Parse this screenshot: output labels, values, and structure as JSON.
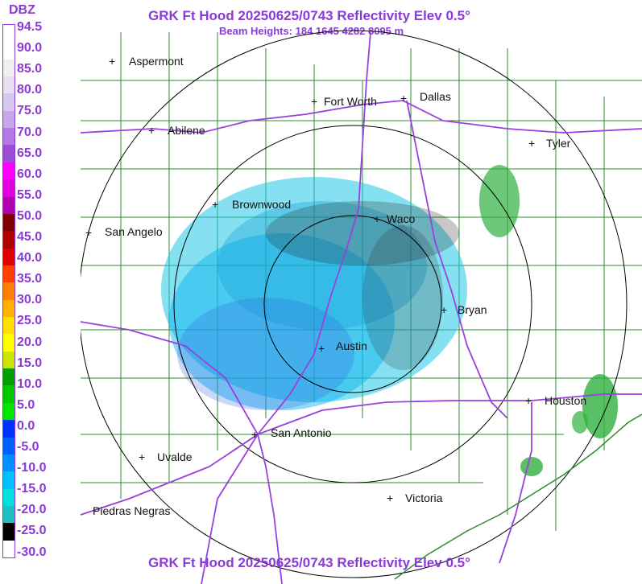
{
  "legend": {
    "title": "DBZ",
    "ticks": [
      "94.5",
      "90.0",
      "85.0",
      "80.0",
      "75.0",
      "70.0",
      "65.0",
      "60.0",
      "55.0",
      "50.0",
      "45.0",
      "40.0",
      "35.0",
      "30.0",
      "25.0",
      "20.0",
      "15.0",
      "10.0",
      "5.0",
      "0.0",
      "-5.0",
      "-10.0",
      "-15.0",
      "-20.0",
      "-25.0",
      "-30.0"
    ],
    "colors": [
      "#ffffff",
      "#ffffff",
      "#f0f0f0",
      "#e6e0f0",
      "#d8c8ee",
      "#c8a6ec",
      "#b478e4",
      "#9a4cd8",
      "#ff00ff",
      "#e000e0",
      "#b000b0",
      "#800000",
      "#b00000",
      "#e00000",
      "#ff4000",
      "#ff8000",
      "#ffb000",
      "#ffe000",
      "#ffff00",
      "#c8e600",
      "#00a000",
      "#00c800",
      "#00e600",
      "#0030ff",
      "#0060ff",
      "#0090ff",
      "#00c0ff",
      "#00e0e0",
      "#20c0c0",
      "#000000",
      "#ffffff"
    ]
  },
  "header": {
    "title": "GRK Ft Hood 20250625/0743 Reflectivity Elev 0.5°",
    "beam_heights": "Beam Heights: 184 1645 4282 8095 m"
  },
  "footer": {
    "title": "GRK Ft Hood 20250625/0743 Reflectivity Elev 0.5°"
  },
  "cities": [
    {
      "name": "Aspermont",
      "marker": "+"
    },
    {
      "name": "Fort Worth",
      "marker": "+"
    },
    {
      "name": "Dallas",
      "marker": "+"
    },
    {
      "name": "Abilene",
      "marker": "+"
    },
    {
      "name": "Tyler",
      "marker": "+"
    },
    {
      "name": "Brownwood",
      "marker": "+"
    },
    {
      "name": "Waco",
      "marker": "+"
    },
    {
      "name": "San Angelo",
      "marker": "+"
    },
    {
      "name": "Bryan",
      "marker": "+"
    },
    {
      "name": "Austin",
      "marker": "+"
    },
    {
      "name": "Houston",
      "marker": "+"
    },
    {
      "name": "San Antonio",
      "marker": "+"
    },
    {
      "name": "Uvalde",
      "marker": "+"
    },
    {
      "name": "Victoria",
      "marker": "+"
    },
    {
      "name": "Piedras Negras",
      "marker": ""
    }
  ],
  "colors": {
    "title": "#8a3bd6",
    "highways": "#9a40e0",
    "county_lines": "#2e8b2e",
    "range_rings": "#000000"
  }
}
